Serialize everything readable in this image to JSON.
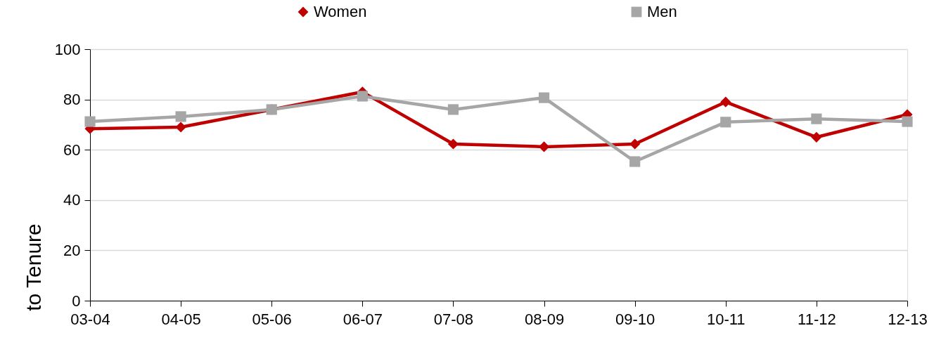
{
  "chart_data": {
    "type": "line",
    "ylabel": "to Tenure",
    "categories": [
      "03-04",
      "04-05",
      "05-06",
      "06-07",
      "07-08",
      "08-09",
      "09-10",
      "10-11",
      "11-12",
      "12-13"
    ],
    "series": [
      {
        "name": "Women",
        "color": "#c00000",
        "marker": "diamond",
        "values": [
          68.4,
          69,
          76,
          83,
          62.3,
          61.2,
          62.3,
          79,
          65,
          74
        ]
      },
      {
        "name": "Men",
        "color": "#a6a6a6",
        "marker": "square",
        "values": [
          71.2,
          73.2,
          76,
          81.3,
          76,
          80.7,
          55.3,
          71,
          72.3,
          71.2
        ]
      }
    ],
    "ylim": [
      0,
      100
    ],
    "yticks": [
      0,
      20,
      40,
      60,
      80,
      100
    ],
    "grid": "y",
    "legend": "top",
    "line_style": "solid"
  }
}
